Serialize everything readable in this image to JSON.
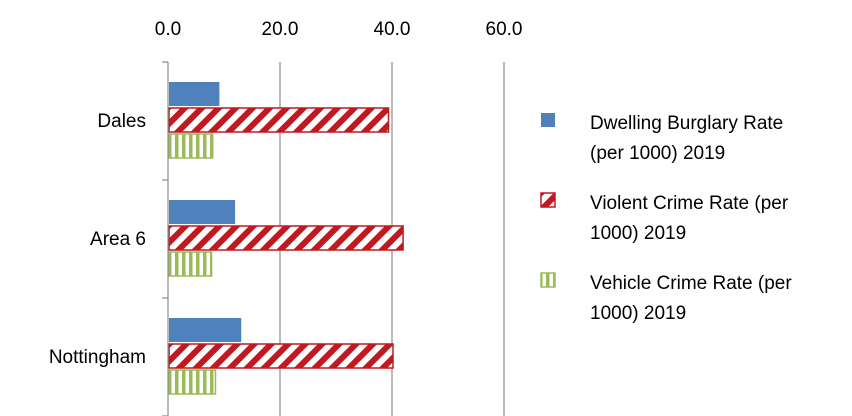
{
  "chart_data": {
    "type": "bar",
    "orientation": "horizontal",
    "title": "",
    "xlabel": "",
    "ylabel": "",
    "xlim": [
      0,
      60
    ],
    "x_ticks": [
      "0.0",
      "20.0",
      "40.0",
      "60.0"
    ],
    "x_tick_values": [
      0,
      20,
      40,
      60
    ],
    "axis_position": "top",
    "grid": true,
    "legend_position": "right",
    "categories": [
      "Dales",
      "Area 6",
      "Nottingham"
    ],
    "series": [
      {
        "name": "Dwelling Burglary Rate (per 1000) 2019",
        "legend_lines": [
          "Dwelling Burglary Rate",
          "(per 1000) 2019"
        ],
        "values": [
          9.0,
          11.8,
          12.9
        ],
        "color": "#4f81bd",
        "fill": "solid"
      },
      {
        "name": "Violent Crime Rate (per 1000) 2019",
        "legend_lines": [
          "Violent Crime Rate (per",
          "1000) 2019"
        ],
        "values": [
          39.2,
          41.8,
          40.0
        ],
        "color": "#c0191f",
        "fill": "diagonal-stripes"
      },
      {
        "name": "Vehicle Crime Rate (per 1000) 2019",
        "legend_lines": [
          "Vehicle Crime Rate (per",
          "1000) 2019"
        ],
        "values": [
          7.8,
          7.6,
          8.3
        ],
        "color": "#9bbb59",
        "fill": "vertical-stripes"
      }
    ]
  }
}
